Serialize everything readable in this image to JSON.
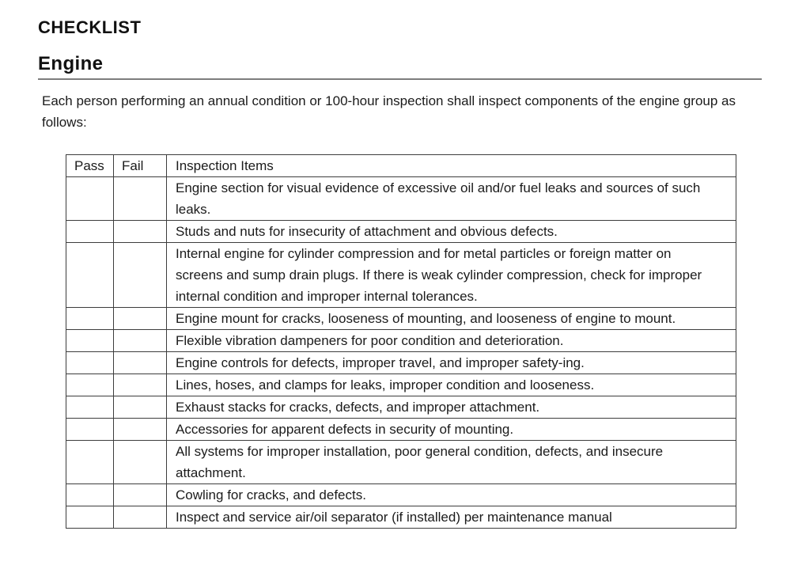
{
  "page": {
    "title": "CHECKLIST",
    "section": "Engine",
    "intro": "Each person performing an annual condition or 100-hour inspection shall inspect components of the engine group as follows:"
  },
  "table": {
    "headers": [
      "Pass",
      "Fail",
      "Inspection Items"
    ],
    "rows": [
      {
        "pass": "",
        "fail": "",
        "item": "Engine section for visual evidence of excessive oil and/or fuel leaks and sources of such leaks."
      },
      {
        "pass": "",
        "fail": "",
        "item": "Studs and nuts for insecurity of attachment and obvious defects."
      },
      {
        "pass": "",
        "fail": "",
        "item": "Internal engine for cylinder compression and for metal particles or foreign matter on screens and sump drain plugs. If there is weak cylinder compression, check for improper internal condition and improper internal tolerances."
      },
      {
        "pass": "",
        "fail": "",
        "item": "Engine mount for cracks, looseness of mounting, and looseness of engine to mount."
      },
      {
        "pass": "",
        "fail": "",
        "item": "Flexible vibration dampeners for poor condition and deterioration."
      },
      {
        "pass": "",
        "fail": "",
        "item": "Engine controls for defects, improper travel, and improper safety-ing."
      },
      {
        "pass": "",
        "fail": "",
        "item": "Lines, hoses, and clamps for leaks, improper condition and looseness."
      },
      {
        "pass": "",
        "fail": "",
        "item": "Exhaust stacks for cracks, defects, and improper attachment."
      },
      {
        "pass": "",
        "fail": "",
        "item": "Accessories for apparent defects in security of mounting."
      },
      {
        "pass": "",
        "fail": "",
        "item": "All systems for improper installation, poor general condition, defects, and insecure attachment."
      },
      {
        "pass": "",
        "fail": "",
        "item": "Cowling for cracks, and defects."
      },
      {
        "pass": "",
        "fail": "",
        "item": "Inspect and service air/oil separator (if installed) per maintenance manual"
      }
    ]
  },
  "colors": {
    "text": "#1b1b1b",
    "table_border": "#3d3d3d",
    "section_rule": "#7d7d7d",
    "background": "#ffffff"
  }
}
